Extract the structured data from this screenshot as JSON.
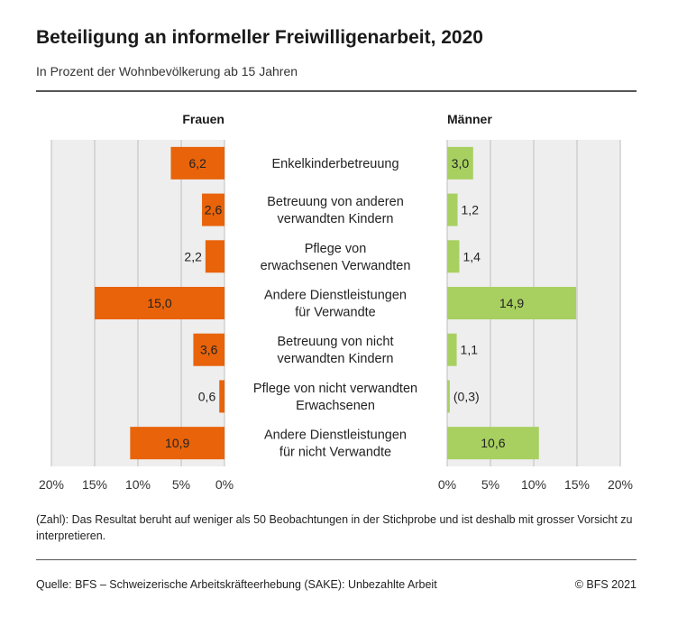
{
  "chart_data": {
    "type": "bar",
    "title": "Beteiligung an informeller Freiwilligenarbeit, 2020",
    "subtitle": "In Prozent der Wohnbevölkerung ab 15 Jahren",
    "categories": [
      [
        "Enkelkinderbetreuung"
      ],
      [
        "Betreuung von anderen",
        "verwandten Kindern"
      ],
      [
        "Pflege von",
        "erwachsenen Verwandten"
      ],
      [
        "Andere Dienstleistungen",
        "für Verwandte"
      ],
      [
        "Betreuung von nicht",
        "verwandten Kindern"
      ],
      [
        "Pflege von nicht verwandten",
        "Erwachsenen"
      ],
      [
        "Andere Dienstleistungen",
        "für nicht Verwandte"
      ]
    ],
    "series": [
      {
        "name": "Frauen",
        "color": "#e8630a",
        "values": [
          6.2,
          2.6,
          2.2,
          15.0,
          3.6,
          0.6,
          10.9
        ],
        "labels": [
          "6,2",
          "2,6",
          "2,2",
          "15,0",
          "3,6",
          "0,6",
          "10,9"
        ]
      },
      {
        "name": "Männer",
        "color": "#a8d060",
        "values": [
          3.0,
          1.2,
          1.4,
          14.9,
          1.1,
          0.3,
          10.6
        ],
        "labels": [
          "3,0",
          "1,2",
          "1,4",
          "14,9",
          "1,1",
          "(0,3)",
          "10,6"
        ]
      }
    ],
    "xlim": [
      0,
      20
    ],
    "ticks": [
      0,
      5,
      10,
      15,
      20
    ],
    "tick_labels": [
      "0%",
      "5%",
      "10%",
      "15%",
      "20%"
    ],
    "grid": true
  },
  "footnote": "(Zahl): Das Resultat beruht auf weniger als 50 Beobachtungen in der Stichprobe und ist deshalb mit grosser Vorsicht zu interpretieren.",
  "source": "Quelle: BFS – Schweizerische Arbeitskräfteerhebung (SAKE): Unbezahlte Arbeit",
  "copyright": "© BFS 2021"
}
